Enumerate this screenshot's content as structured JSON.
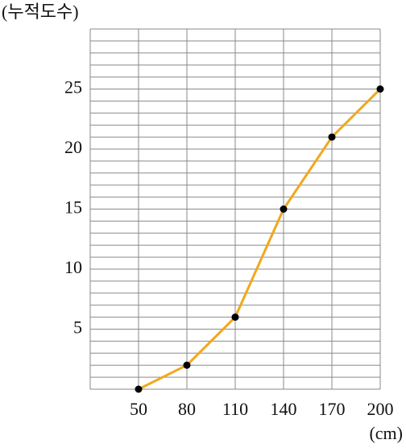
{
  "chart_data": {
    "type": "line",
    "y_label": "(누적도수)",
    "x_label": "(cm)",
    "x": [
      50,
      80,
      110,
      140,
      170,
      200
    ],
    "series": [
      {
        "color": "#f0a81c",
        "values": [
          0,
          2,
          6,
          15,
          21,
          25
        ]
      }
    ],
    "xlim": [
      20,
      200
    ],
    "ylim": [
      0,
      30
    ],
    "xticks": [
      50,
      80,
      110,
      140,
      170,
      200
    ],
    "yticks": [
      5,
      10,
      15,
      20,
      25
    ],
    "grid": true
  }
}
